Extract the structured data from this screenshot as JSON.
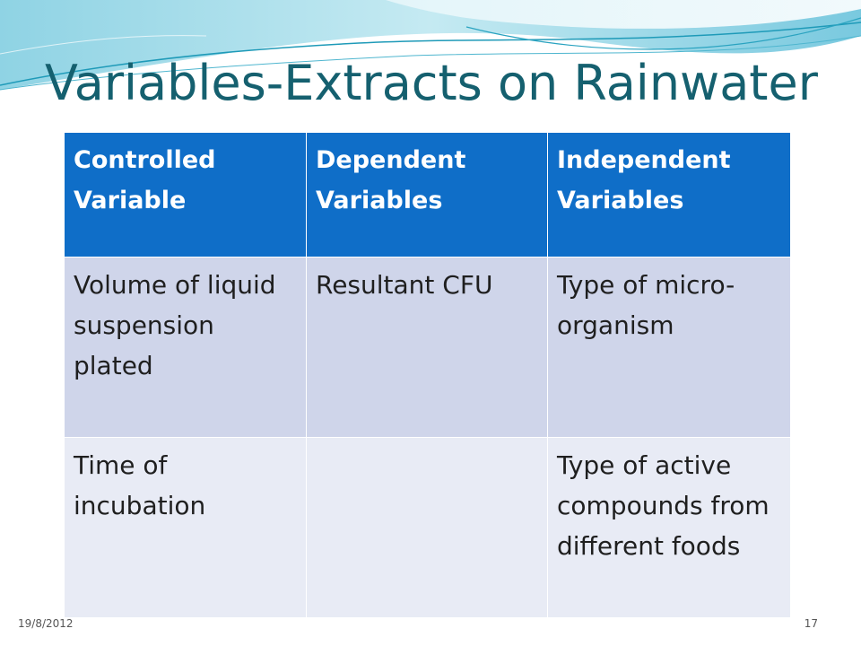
{
  "slide": {
    "title": "Variables-Extracts on Rainwater",
    "date": "19/8/2012",
    "page_number": "17"
  },
  "table": {
    "headers": [
      "Controlled Variable",
      "Dependent Variables",
      "Independent Variables"
    ],
    "rows": [
      [
        "Volume of liquid suspension plated",
        "Resultant CFU",
        "Type of micro-organism"
      ],
      [
        "Time of incubation",
        "",
        "Type of active compounds from different foods"
      ]
    ]
  },
  "colors": {
    "title": "#15606f",
    "header_bg": "#0f6ec8",
    "row1_bg": "#cfd5ea",
    "row2_bg": "#e8ebf5",
    "wave_light": "#bfe7f0",
    "wave_mid": "#7fcde0",
    "wave_dark": "#1e9ab8"
  }
}
